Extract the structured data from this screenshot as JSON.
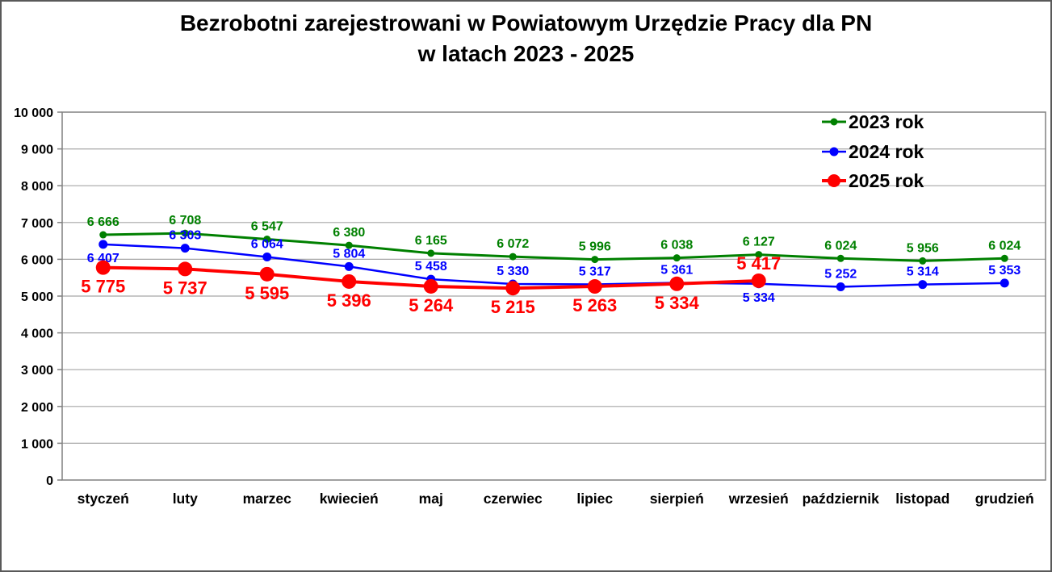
{
  "title": {
    "line1": "Bezrobotni zarejestrowani w Powiatowym Urzędzie Pracy dla PN",
    "line2": "w latach 2023 - 2025"
  },
  "chart_data": {
    "type": "line",
    "title": "Bezrobotni zarejestrowani w Powiatowym Urzędzie Pracy dla PN w latach 2023 - 2025",
    "categories": [
      "styczeń",
      "luty",
      "marzec",
      "kwiecień",
      "maj",
      "czerwiec",
      "lipiec",
      "sierpień",
      "wrzesień",
      "październik",
      "listopad",
      "grudzień"
    ],
    "series": [
      {
        "name": "2023 rok",
        "color": "#008000",
        "values": [
          6666,
          6708,
          6547,
          6380,
          6165,
          6072,
          5996,
          6038,
          6127,
          6024,
          5956,
          6024
        ],
        "line_width": 3,
        "marker_radius": 4.5,
        "label_font_size": 16,
        "label_side": [
          "above",
          "above",
          "above",
          "above",
          "above",
          "above",
          "above",
          "above",
          "above",
          "above",
          "above",
          "above"
        ]
      },
      {
        "name": "2024 rok",
        "color": "#0000FF",
        "values": [
          6407,
          6303,
          6064,
          5804,
          5458,
          5330,
          5317,
          5361,
          5334,
          5252,
          5314,
          5353
        ],
        "line_width": 2.5,
        "marker_radius": 5.5,
        "label_font_size": 16,
        "label_side": [
          "below",
          "above",
          "above",
          "above",
          "above",
          "above",
          "above",
          "above",
          "below",
          "above",
          "above",
          "above"
        ]
      },
      {
        "name": "2025 rok",
        "color": "#FF0000",
        "values": [
          5775,
          5737,
          5595,
          5396,
          5264,
          5215,
          5263,
          5334,
          5417
        ],
        "line_width": 4,
        "marker_radius": 9,
        "label_font_size": 22,
        "label_side": [
          "below",
          "below",
          "below",
          "below",
          "below",
          "below",
          "below",
          "below",
          "above"
        ]
      }
    ],
    "xlabel": "",
    "ylabel": "",
    "ylim": [
      0,
      10000
    ],
    "y_tick_step": 1000,
    "y_tick_labels": [
      "0",
      "1 000",
      "2 000",
      "3 000",
      "4 000",
      "5 000",
      "6 000",
      "7 000",
      "8 000",
      "9 000",
      "10 000"
    ],
    "grid": "horizontal",
    "legend_position": "top-right",
    "legend_entries": [
      "2023 rok",
      "2024 rok",
      "2025 rok"
    ]
  },
  "colors": {
    "background": "#FFFFFF",
    "frame_border": "#595959",
    "plot_border": "#808080",
    "gridline": "#A6A6A6",
    "axis_text": "#000000",
    "series_2023": "#008000",
    "series_2024": "#0000FF",
    "series_2025": "#FF0000"
  }
}
